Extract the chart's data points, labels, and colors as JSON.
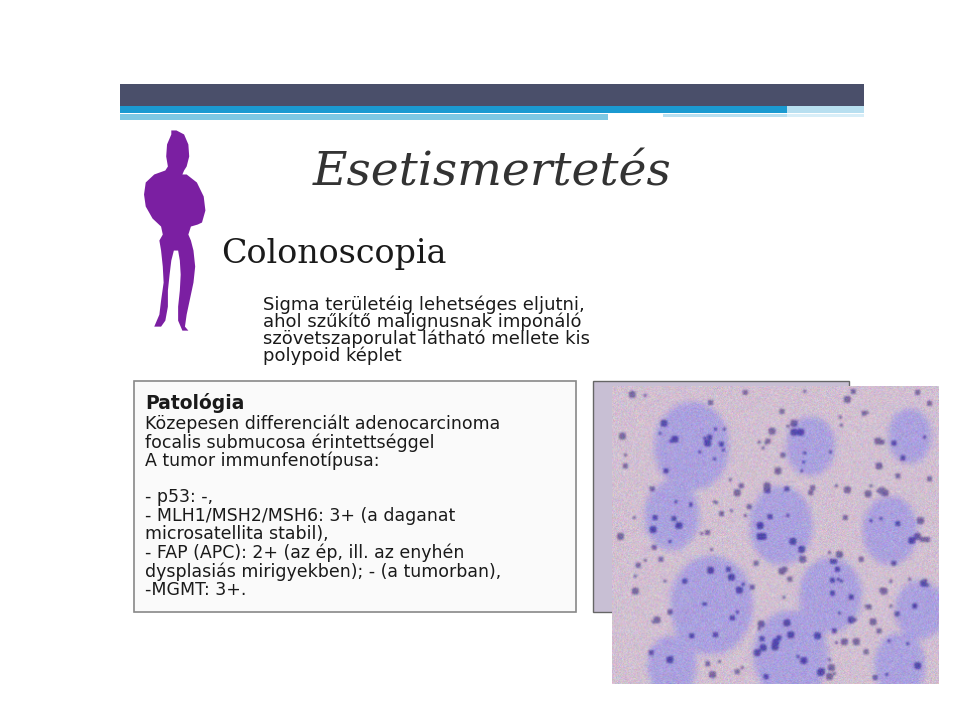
{
  "title": "Esetismertetés",
  "heading1": "Colonoscopia",
  "colonoscopia_text": "Sigma területéig lehetséges eljutni,\nahol szűkítő malignusnak imponáló\nszövetszaporulat látható mellete kis\npolypoid képlet",
  "patologia_heading": "Patológia",
  "bg_color": "#ffffff",
  "header_dark_color": "#4a4f6a",
  "header_blue_color": "#1b9ad1",
  "header_lightblue1": "#7ec8e3",
  "header_lightblue2": "#b8dff0",
  "accent_blue1": "#1b9ad1",
  "accent_lightblue": "#a8d8ea",
  "text_color": "#1a1a1a",
  "title_color": "#333333",
  "purple_color": "#7b1fa2",
  "box_edge_color": "#888888",
  "patologia_lines": [
    "Közepesen differenciált adenocarcinoma",
    "focalis submucosa érintettséggel",
    "A tumor immunfenotípusa:",
    "",
    "- p53: -,",
    "- MLH1/MSH2/MSH6: 3+ (a daganat",
    "microsatellita stabil),",
    "- FAP (APC): 2+ (az ép, ill. az enyhén",
    "dysplasiás mirigyekben); - (a tumorban),",
    "-MGMT: 3+."
  ]
}
